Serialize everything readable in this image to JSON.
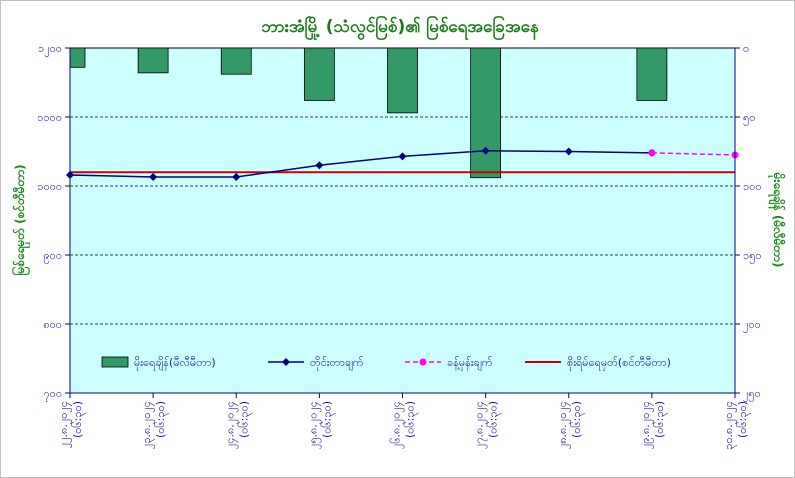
{
  "chart_data": {
    "type": "bar+line",
    "title": "ဘားအံမြို့ (သံလွင်မြစ်)၏ မြစ်ရေအခြေအနေ",
    "left_axis": {
      "label": "မြစ်ရေမှတ် (စင်တီမီတာ)",
      "min": 700,
      "max": 1200,
      "step": 100,
      "tick_labels": [
        "၇၀၀",
        "၈၀၀",
        "၉၀၀",
        "၁၀၀၀",
        "၁၁၀၀",
        "၁၂၀၀"
      ]
    },
    "right_axis": {
      "label": "မိုးရေချိန် (မီလီမီတာ)",
      "min": 0,
      "max": 250,
      "step": 50,
      "inverted": true,
      "tick_labels": [
        "၀",
        "၅၀",
        "၁၀၀",
        "၁၅၀",
        "၂၀၀",
        "၂၅၀"
      ]
    },
    "categories": [
      {
        "date": "၂၂.၈.၂၀၂၄",
        "time": "(၀၆:၃၀)"
      },
      {
        "date": "၂၃.၈.၂၀၂၄",
        "time": "(၀၆:၃၀)"
      },
      {
        "date": "၂၄.၈.၂၀၂၄",
        "time": "(၀၆:၃၀)"
      },
      {
        "date": "၂၅.၈.၂၀၂၄",
        "time": "(၀၆:၃၀)"
      },
      {
        "date": "၂၆.၈.၂၀၂၄",
        "time": "(၀၆:၃၀)"
      },
      {
        "date": "၂၇.၈.၂၀၂၄",
        "time": "(၀၆:၃၀)"
      },
      {
        "date": "၂၈.၈.၂၀၂၄",
        "time": "(၀၆:၃၀)"
      },
      {
        "date": "၂၉.၈.၂၀၂၄",
        "time": "(၀၆:၃၀)"
      },
      {
        "date": "၃၀.၈.၂၀၂၄",
        "time": "(၀၆:၃၀)"
      }
    ],
    "series": [
      {
        "name": "မိုးရေချိန်(မီလီမီတာ)",
        "kind": "bar",
        "axis": "right",
        "color": "#339966",
        "values": [
          14,
          18,
          19,
          38,
          47,
          94,
          null,
          38,
          null
        ]
      },
      {
        "name": "တိုင်းတာချက်",
        "kind": "line",
        "axis": "left",
        "color": "#000080",
        "values": [
          1016,
          1013,
          1013,
          1030,
          1043,
          1051,
          1050,
          1048,
          null
        ]
      },
      {
        "name": "ခန့်မှန်းချက်",
        "kind": "dashed-line",
        "axis": "left",
        "color": "#ff00ff",
        "values": [
          null,
          null,
          null,
          null,
          null,
          null,
          null,
          1048,
          1045
        ]
      },
      {
        "name": "စိုးရိမ်ရေမှတ်(စင်တီမီတာ)",
        "kind": "hline",
        "axis": "left",
        "color": "#cc0000",
        "value": 1020
      }
    ],
    "grid": {
      "horizontal": true,
      "style": "dashed"
    },
    "plot_background": "#ccffff",
    "legend_position": "bottom-inside"
  }
}
